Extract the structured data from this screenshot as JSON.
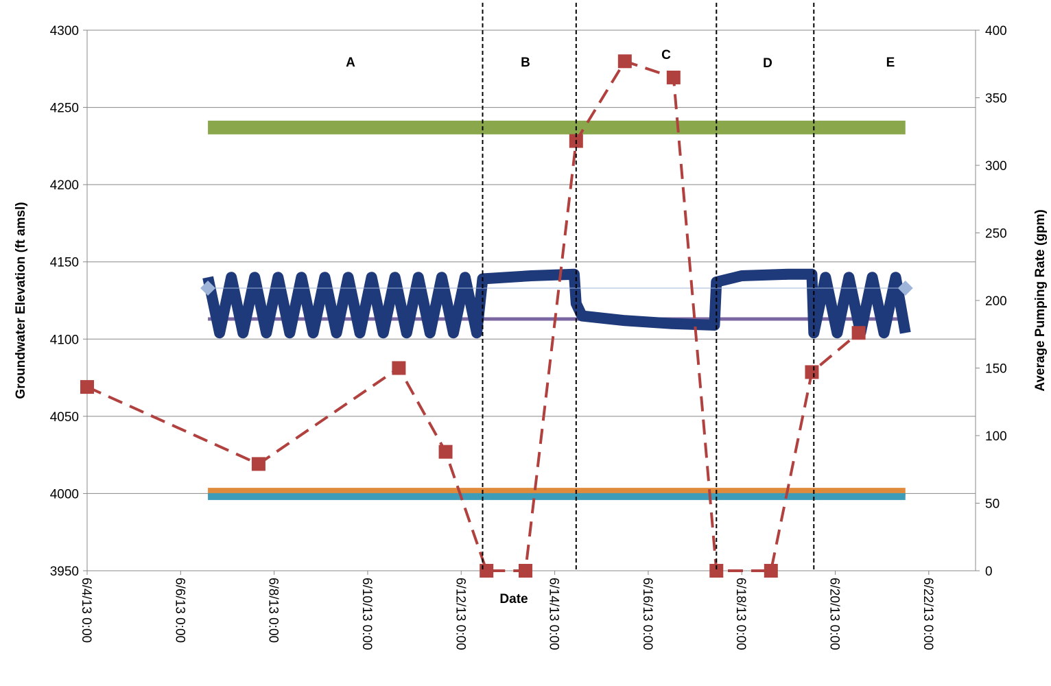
{
  "chart_data": {
    "type": "line",
    "xlabel": "Date",
    "ylabel": "Groundwater Elevation (ft amsl)",
    "y2label": "Average Pumping Rate (gpm)",
    "annotations": [
      "A",
      "B",
      "C",
      "D",
      "E"
    ],
    "phase_boundaries": [
      "2013-06-12T11:00",
      "2013-06-14T11:00",
      "2013-06-17T11:00",
      "2013-06-19T13:00"
    ],
    "xlim": [
      "2013-06-04T00:00",
      "2013-06-23T00:00"
    ],
    "xticks": [
      {
        "value": "2013-06-04T00:00",
        "label": "6/4/13 0:00"
      },
      {
        "value": "2013-06-06T00:00",
        "label": "6/6/13 0:00"
      },
      {
        "value": "2013-06-08T00:00",
        "label": "6/8/13 0:00"
      },
      {
        "value": "2013-06-10T00:00",
        "label": "6/10/13 0:00"
      },
      {
        "value": "2013-06-12T00:00",
        "label": "6/12/13 0:00"
      },
      {
        "value": "2013-06-14T00:00",
        "label": "6/14/13 0:00"
      },
      {
        "value": "2013-06-16T00:00",
        "label": "6/16/13 0:00"
      },
      {
        "value": "2013-06-18T00:00",
        "label": "6/18/13 0:00"
      },
      {
        "value": "2013-06-20T00:00",
        "label": "6/20/13 0:00"
      },
      {
        "value": "2013-06-22T00:00",
        "label": "6/22/13 0:00"
      }
    ],
    "ylim": [
      3950,
      4300
    ],
    "yticks": [
      3950,
      4000,
      4050,
      4100,
      4150,
      4200,
      4250,
      4300
    ],
    "y2lim": [
      0,
      400
    ],
    "y2ticks": [
      0,
      50,
      100,
      150,
      200,
      250,
      300,
      350,
      400
    ],
    "grid": true,
    "series": [
      {
        "color": "#8aa84b",
        "marker": null,
        "dash": false,
        "x": [
          "2013-06-06T14:00",
          "2013-06-21T12:00"
        ],
        "values": [
          4237,
          4237
        ]
      },
      {
        "color": "#e08a3c",
        "marker": null,
        "dash": false,
        "x": [
          "2013-06-06T14:00",
          "2013-06-21T12:00"
        ],
        "values": [
          4001,
          4001
        ]
      },
      {
        "color": "#3d9cb8",
        "marker": null,
        "dash": false,
        "x": [
          "2013-06-06T14:00",
          "2013-06-21T12:00"
        ],
        "values": [
          3998,
          3998
        ]
      },
      {
        "color": "#7a66a0",
        "marker": null,
        "dash": false,
        "x": [
          "2013-06-06T14:00",
          "2013-06-21T12:00"
        ],
        "values": [
          4113,
          4113
        ]
      },
      {
        "color": "#1f3a7a",
        "marker": null,
        "dash": false,
        "x": [
          "2013-06-06T14:00",
          "2013-06-06T20:00",
          "2013-06-07T02:00",
          "2013-06-07T08:00",
          "2013-06-07T14:00",
          "2013-06-07T20:00",
          "2013-06-08T02:00",
          "2013-06-08T08:00",
          "2013-06-08T14:00",
          "2013-06-08T20:00",
          "2013-06-09T02:00",
          "2013-06-09T08:00",
          "2013-06-09T14:00",
          "2013-06-09T20:00",
          "2013-06-10T02:00",
          "2013-06-10T08:00",
          "2013-06-10T14:00",
          "2013-06-10T20:00",
          "2013-06-11T02:00",
          "2013-06-11T08:00",
          "2013-06-11T14:00",
          "2013-06-11T20:00",
          "2013-06-12T02:00",
          "2013-06-12T08:00",
          "2013-06-12T11:00",
          "2013-06-13T12:00",
          "2013-06-14T10:00",
          "2013-06-14T11:00",
          "2013-06-14T14:00",
          "2013-06-15T12:00",
          "2013-06-16T12:00",
          "2013-06-17T10:00",
          "2013-06-17T11:00",
          "2013-06-18T00:00",
          "2013-06-19T00:00",
          "2013-06-19T12:00",
          "2013-06-19T13:00",
          "2013-06-19T19:00",
          "2013-06-20T01:00",
          "2013-06-20T07:00",
          "2013-06-20T13:00",
          "2013-06-20T19:00",
          "2013-06-21T01:00",
          "2013-06-21T07:00",
          "2013-06-21T12:00"
        ],
        "values": [
          4140,
          4104,
          4140,
          4104,
          4140,
          4104,
          4140,
          4104,
          4140,
          4104,
          4140,
          4104,
          4140,
          4104,
          4140,
          4104,
          4140,
          4104,
          4140,
          4104,
          4140,
          4104,
          4140,
          4104,
          4139,
          4141,
          4142,
          4123,
          4115,
          4112,
          4110,
          4109,
          4137,
          4141,
          4142,
          4142,
          4104,
          4140,
          4104,
          4140,
          4104,
          4140,
          4104,
          4140,
          4104
        ]
      },
      {
        "color": "#9fb4d9",
        "marker": "diamond",
        "dash": false,
        "x": [
          "2013-06-06T14:00",
          "2013-06-21T12:00"
        ],
        "values": [
          4133,
          4133
        ]
      },
      {
        "color": "#b0413e",
        "marker": "square",
        "dash": true,
        "axis": "y2",
        "x": [
          "2013-06-04T00:00",
          "2013-06-07T16:00",
          "2013-06-10T16:00",
          "2013-06-11T16:00",
          "2013-06-12T13:00",
          "2013-06-13T09:00",
          "2013-06-14T11:00",
          "2013-06-15T12:00",
          "2013-06-16T13:00",
          "2013-06-17T11:00",
          "2013-06-18T15:00",
          "2013-06-19T12:00",
          "2013-06-20T12:00"
        ],
        "values": [
          136,
          79,
          150,
          88,
          0,
          0,
          318,
          377,
          365,
          0,
          0,
          147,
          176
        ]
      }
    ]
  }
}
